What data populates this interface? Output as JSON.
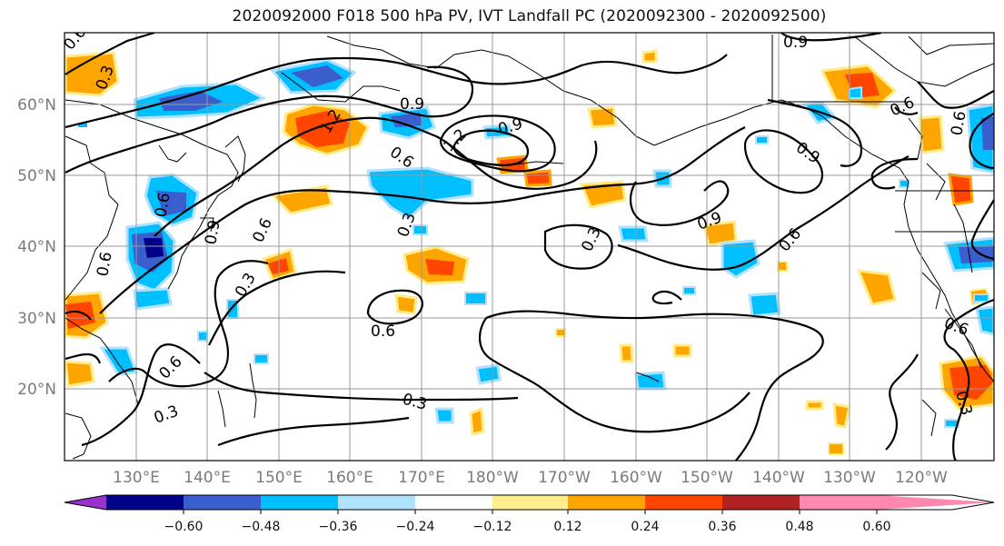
{
  "title": "2020092000 F018 500 hPa PV, IVT Landfall PC (2020092300 - 2020092500)",
  "lat_labels": [
    "60°N",
    "50°N",
    "40°N",
    "30°N",
    "20°N"
  ],
  "lon_labels": [
    "130°E",
    "140°E",
    "150°E",
    "160°E",
    "170°E",
    "180°W",
    "170°W",
    "160°W",
    "150°W",
    "140°W",
    "130°W",
    "120°W"
  ],
  "colorbar": {
    "ticks": [
      "−0.60",
      "−0.48",
      "−0.36",
      "−0.24",
      "−0.12",
      "0.12",
      "0.24",
      "0.36",
      "0.48",
      "0.60"
    ],
    "colors": [
      "#9932cc",
      "#00008b",
      "#3a5fcd",
      "#00bfff",
      "#b0e2ff",
      "#ffffff",
      "#ffec8b",
      "#ffa500",
      "#ff4500",
      "#b22222",
      "#ff88b0"
    ]
  },
  "contour_labels": [
    "0.6",
    "0.3",
    "0.9",
    "1.2",
    "0.6",
    "0.9",
    "1.2",
    "0.9",
    "0.6",
    "0.6",
    "0.3",
    "0.3",
    "0.3",
    "0.6",
    "0.9",
    "0.6",
    "0.6",
    "0.3",
    "0.3",
    "0.6",
    "0.9",
    "0.6",
    "0.9",
    "0.6",
    "0.6",
    "0.3"
  ],
  "colors": {
    "contour": "#000000",
    "grid": "#9a9a9a",
    "tick_text": "#7a7a7a"
  }
}
